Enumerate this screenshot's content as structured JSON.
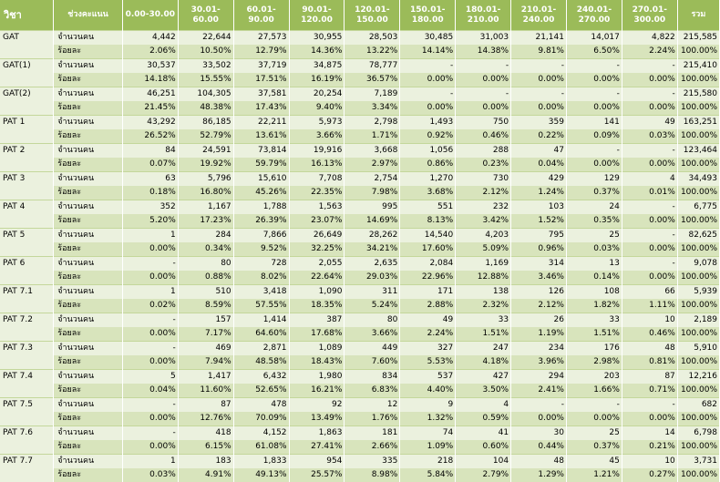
{
  "header": {
    "subject": "วิชา",
    "range": "ช่วงคะแนน",
    "cols": [
      "0.00-30.00",
      "30.01-60.00",
      "60.01-90.00",
      "90.01-\n120.00",
      "120.01-\n150.00",
      "150.01-\n180.00",
      "180.01-\n210.00",
      "210.01-\n240.00",
      "240.01-\n270.00",
      "270.01-\n300.00"
    ],
    "total": "รวม"
  },
  "labels": {
    "count": "จำนวนคน",
    "percent": "ร้อยละ"
  },
  "rows": [
    {
      "subject": "GAT",
      "count": [
        "4,442",
        "22,644",
        "27,573",
        "30,955",
        "28,503",
        "30,485",
        "31,003",
        "21,141",
        "14,017",
        "4,822",
        "215,585"
      ],
      "percent": [
        "2.06%",
        "10.50%",
        "12.79%",
        "14.36%",
        "13.22%",
        "14.14%",
        "14.38%",
        "9.81%",
        "6.50%",
        "2.24%",
        "100.00%"
      ]
    },
    {
      "subject": "GAT(1)",
      "count": [
        "30,537",
        "33,502",
        "37,719",
        "34,875",
        "78,777",
        "-",
        "-",
        "-",
        "-",
        "-",
        "215,410"
      ],
      "percent": [
        "14.18%",
        "15.55%",
        "17.51%",
        "16.19%",
        "36.57%",
        "0.00%",
        "0.00%",
        "0.00%",
        "0.00%",
        "0.00%",
        "100.00%"
      ]
    },
    {
      "subject": "GAT(2)",
      "count": [
        "46,251",
        "104,305",
        "37,581",
        "20,254",
        "7,189",
        "-",
        "-",
        "-",
        "-",
        "-",
        "215,580"
      ],
      "percent": [
        "21.45%",
        "48.38%",
        "17.43%",
        "9.40%",
        "3.34%",
        "0.00%",
        "0.00%",
        "0.00%",
        "0.00%",
        "0.00%",
        "100.00%"
      ]
    },
    {
      "subject": "PAT 1",
      "count": [
        "43,292",
        "86,185",
        "22,211",
        "5,973",
        "2,798",
        "1,493",
        "750",
        "359",
        "141",
        "49",
        "163,251"
      ],
      "percent": [
        "26.52%",
        "52.79%",
        "13.61%",
        "3.66%",
        "1.71%",
        "0.92%",
        "0.46%",
        "0.22%",
        "0.09%",
        "0.03%",
        "100.00%"
      ]
    },
    {
      "subject": "PAT 2",
      "count": [
        "84",
        "24,591",
        "73,814",
        "19,916",
        "3,668",
        "1,056",
        "288",
        "47",
        "-",
        "-",
        "123,464"
      ],
      "percent": [
        "0.07%",
        "19.92%",
        "59.79%",
        "16.13%",
        "2.97%",
        "0.86%",
        "0.23%",
        "0.04%",
        "0.00%",
        "0.00%",
        "100.00%"
      ]
    },
    {
      "subject": "PAT 3",
      "count": [
        "63",
        "5,796",
        "15,610",
        "7,708",
        "2,754",
        "1,270",
        "730",
        "429",
        "129",
        "4",
        "34,493"
      ],
      "percent": [
        "0.18%",
        "16.80%",
        "45.26%",
        "22.35%",
        "7.98%",
        "3.68%",
        "2.12%",
        "1.24%",
        "0.37%",
        "0.01%",
        "100.00%"
      ]
    },
    {
      "subject": "PAT 4",
      "count": [
        "352",
        "1,167",
        "1,788",
        "1,563",
        "995",
        "551",
        "232",
        "103",
        "24",
        "-",
        "6,775"
      ],
      "percent": [
        "5.20%",
        "17.23%",
        "26.39%",
        "23.07%",
        "14.69%",
        "8.13%",
        "3.42%",
        "1.52%",
        "0.35%",
        "0.00%",
        "100.00%"
      ]
    },
    {
      "subject": "PAT 5",
      "count": [
        "1",
        "284",
        "7,866",
        "26,649",
        "28,262",
        "14,540",
        "4,203",
        "795",
        "25",
        "-",
        "82,625"
      ],
      "percent": [
        "0.00%",
        "0.34%",
        "9.52%",
        "32.25%",
        "34.21%",
        "17.60%",
        "5.09%",
        "0.96%",
        "0.03%",
        "0.00%",
        "100.00%"
      ]
    },
    {
      "subject": "PAT 6",
      "count": [
        "-",
        "80",
        "728",
        "2,055",
        "2,635",
        "2,084",
        "1,169",
        "314",
        "13",
        "-",
        "9,078"
      ],
      "percent": [
        "0.00%",
        "0.88%",
        "8.02%",
        "22.64%",
        "29.03%",
        "22.96%",
        "12.88%",
        "3.46%",
        "0.14%",
        "0.00%",
        "100.00%"
      ]
    },
    {
      "subject": "PAT 7.1",
      "count": [
        "1",
        "510",
        "3,418",
        "1,090",
        "311",
        "171",
        "138",
        "126",
        "108",
        "66",
        "5,939"
      ],
      "percent": [
        "0.02%",
        "8.59%",
        "57.55%",
        "18.35%",
        "5.24%",
        "2.88%",
        "2.32%",
        "2.12%",
        "1.82%",
        "1.11%",
        "100.00%"
      ]
    },
    {
      "subject": "PAT 7.2",
      "count": [
        "-",
        "157",
        "1,414",
        "387",
        "80",
        "49",
        "33",
        "26",
        "33",
        "10",
        "2,189"
      ],
      "percent": [
        "0.00%",
        "7.17%",
        "64.60%",
        "17.68%",
        "3.66%",
        "2.24%",
        "1.51%",
        "1.19%",
        "1.51%",
        "0.46%",
        "100.00%"
      ]
    },
    {
      "subject": "PAT 7.3",
      "count": [
        "-",
        "469",
        "2,871",
        "1,089",
        "449",
        "327",
        "247",
        "234",
        "176",
        "48",
        "5,910"
      ],
      "percent": [
        "0.00%",
        "7.94%",
        "48.58%",
        "18.43%",
        "7.60%",
        "5.53%",
        "4.18%",
        "3.96%",
        "2.98%",
        "0.81%",
        "100.00%"
      ]
    },
    {
      "subject": "PAT 7.4",
      "count": [
        "5",
        "1,417",
        "6,432",
        "1,980",
        "834",
        "537",
        "427",
        "294",
        "203",
        "87",
        "12,216"
      ],
      "percent": [
        "0.04%",
        "11.60%",
        "52.65%",
        "16.21%",
        "6.83%",
        "4.40%",
        "3.50%",
        "2.41%",
        "1.66%",
        "0.71%",
        "100.00%"
      ]
    },
    {
      "subject": "PAT 7.5",
      "count": [
        "-",
        "87",
        "478",
        "92",
        "12",
        "9",
        "4",
        "-",
        "-",
        "-",
        "682"
      ],
      "percent": [
        "0.00%",
        "12.76%",
        "70.09%",
        "13.49%",
        "1.76%",
        "1.32%",
        "0.59%",
        "0.00%",
        "0.00%",
        "0.00%",
        "100.00%"
      ]
    },
    {
      "subject": "PAT 7.6",
      "count": [
        "-",
        "418",
        "4,152",
        "1,863",
        "181",
        "74",
        "41",
        "30",
        "25",
        "14",
        "6,798"
      ],
      "percent": [
        "0.00%",
        "6.15%",
        "61.08%",
        "27.41%",
        "2.66%",
        "1.09%",
        "0.60%",
        "0.44%",
        "0.37%",
        "0.21%",
        "100.00%"
      ]
    },
    {
      "subject": "PAT 7.7",
      "count": [
        "1",
        "183",
        "1,833",
        "954",
        "335",
        "218",
        "104",
        "48",
        "45",
        "10",
        "3,731"
      ],
      "percent": [
        "0.03%",
        "4.91%",
        "49.13%",
        "25.57%",
        "8.98%",
        "5.84%",
        "2.79%",
        "1.29%",
        "1.21%",
        "0.27%",
        "100.00%"
      ]
    }
  ]
}
